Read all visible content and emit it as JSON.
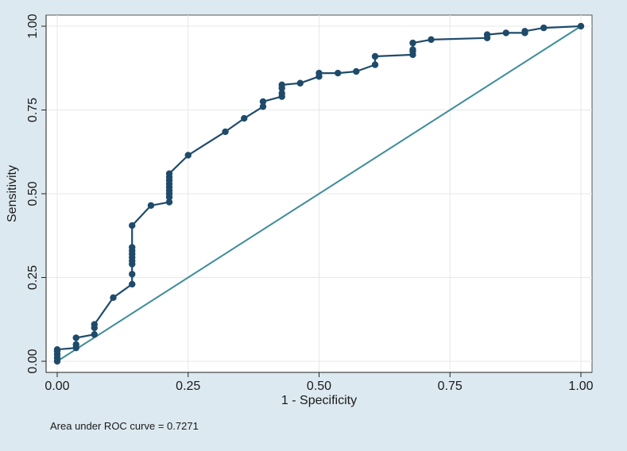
{
  "chart_data": {
    "type": "line",
    "xlabel": "1 - Specificity",
    "ylabel": "Sensitivity",
    "xlim": [
      0,
      1
    ],
    "ylim": [
      0,
      1
    ],
    "xticks": [
      "0.00",
      "0.25",
      "0.50",
      "0.75",
      "1.00"
    ],
    "yticks": [
      "0.00",
      "0.25",
      "0.50",
      "0.75",
      "1.00"
    ],
    "grid": true,
    "note": "Area under ROC curve = 0.7271",
    "colors": {
      "roc": "#1f4b6b",
      "reference": "#3e8c9a",
      "plot_bg": "#ffffff",
      "grid": "#e4e8ea",
      "page_bg": "#dde9f0"
    },
    "series": [
      {
        "role": "roc",
        "points": [
          [
            0.0,
            0.0
          ],
          [
            0.0,
            0.01
          ],
          [
            0.0,
            0.02
          ],
          [
            0.0,
            0.03
          ],
          [
            0.0,
            0.035
          ],
          [
            0.036,
            0.04
          ],
          [
            0.036,
            0.05
          ],
          [
            0.036,
            0.07
          ],
          [
            0.071,
            0.08
          ],
          [
            0.071,
            0.1
          ],
          [
            0.071,
            0.11
          ],
          [
            0.107,
            0.19
          ],
          [
            0.143,
            0.23
          ],
          [
            0.143,
            0.26
          ],
          [
            0.143,
            0.29
          ],
          [
            0.143,
            0.3
          ],
          [
            0.143,
            0.31
          ],
          [
            0.143,
            0.32
          ],
          [
            0.143,
            0.33
          ],
          [
            0.143,
            0.34
          ],
          [
            0.143,
            0.405
          ],
          [
            0.179,
            0.465
          ],
          [
            0.214,
            0.475
          ],
          [
            0.214,
            0.49
          ],
          [
            0.214,
            0.5
          ],
          [
            0.214,
            0.51
          ],
          [
            0.214,
            0.52
          ],
          [
            0.214,
            0.53
          ],
          [
            0.214,
            0.54
          ],
          [
            0.214,
            0.55
          ],
          [
            0.214,
            0.56
          ],
          [
            0.25,
            0.615
          ],
          [
            0.321,
            0.685
          ],
          [
            0.357,
            0.725
          ],
          [
            0.393,
            0.76
          ],
          [
            0.393,
            0.775
          ],
          [
            0.429,
            0.79
          ],
          [
            0.429,
            0.8
          ],
          [
            0.429,
            0.815
          ],
          [
            0.429,
            0.825
          ],
          [
            0.464,
            0.83
          ],
          [
            0.5,
            0.85
          ],
          [
            0.5,
            0.86
          ],
          [
            0.536,
            0.86
          ],
          [
            0.571,
            0.865
          ],
          [
            0.607,
            0.885
          ],
          [
            0.607,
            0.91
          ],
          [
            0.679,
            0.915
          ],
          [
            0.679,
            0.925
          ],
          [
            0.679,
            0.93
          ],
          [
            0.679,
            0.95
          ],
          [
            0.714,
            0.96
          ],
          [
            0.821,
            0.965
          ],
          [
            0.821,
            0.975
          ],
          [
            0.857,
            0.98
          ],
          [
            0.893,
            0.98
          ],
          [
            0.893,
            0.985
          ],
          [
            0.929,
            0.995
          ],
          [
            1.0,
            1.0
          ]
        ]
      },
      {
        "role": "reference",
        "points": [
          [
            0,
            0
          ],
          [
            1,
            1
          ]
        ]
      }
    ]
  }
}
